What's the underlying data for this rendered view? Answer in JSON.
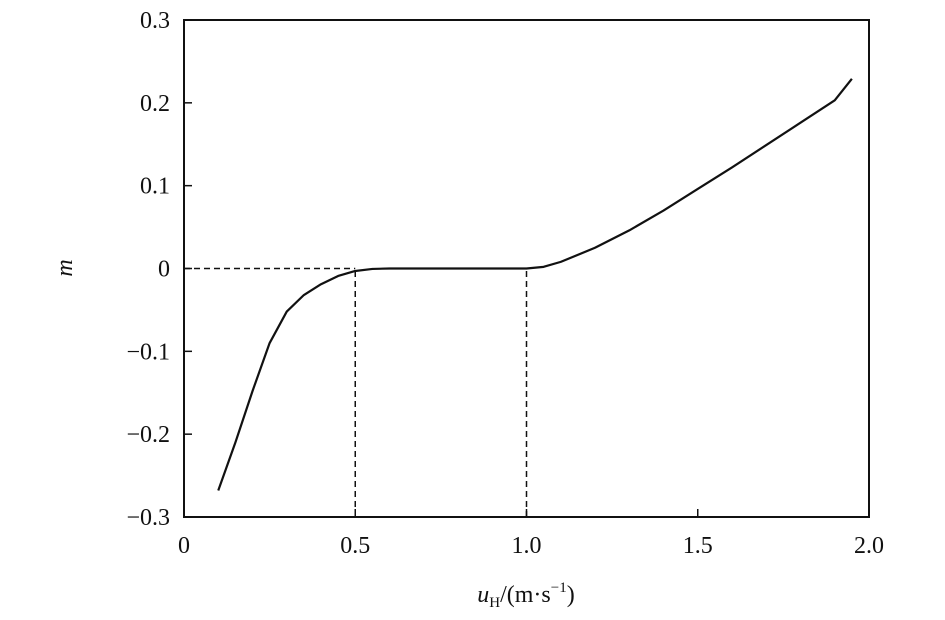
{
  "chart_data": {
    "type": "line",
    "ylabel": "m",
    "xlabel": {
      "var": "u",
      "sub": "H",
      "unit": "/(m·s",
      "sup": "−1",
      "close": ")"
    },
    "x": [
      0.1,
      0.15,
      0.2,
      0.25,
      0.3,
      0.35,
      0.4,
      0.45,
      0.5,
      0.55,
      0.6,
      0.7,
      0.8,
      0.9,
      1.0,
      1.05,
      1.1,
      1.2,
      1.3,
      1.4,
      1.5,
      1.6,
      1.7,
      1.8,
      1.9,
      1.95
    ],
    "series": [
      {
        "color": "#111111",
        "values": [
          -0.268,
          -0.21,
          -0.148,
          -0.09,
          -0.052,
          -0.032,
          -0.019,
          -0.009,
          -0.003,
          -0.0005,
          0,
          0,
          0,
          0,
          0,
          0.002,
          0.008,
          0.025,
          0.046,
          0.07,
          0.096,
          0.122,
          0.149,
          0.176,
          0.203,
          0.229
        ]
      }
    ],
    "xlim": [
      0,
      2.0
    ],
    "ylim": [
      -0.3,
      0.3
    ],
    "xticks": [
      0,
      0.5,
      {
        "value": 1.0,
        "label": "1.0"
      },
      1.5,
      {
        "value": 2.0,
        "label": "2.0"
      }
    ],
    "yticks": [
      {
        "value": -0.3,
        "label": "−0.3"
      },
      {
        "value": -0.2,
        "label": "−0.2"
      },
      {
        "value": -0.1,
        "label": "−0.1"
      },
      0,
      0.1,
      0.2,
      0.3
    ],
    "reference_lines": {
      "x": [
        0.5,
        1.0
      ],
      "y": 0
    }
  }
}
